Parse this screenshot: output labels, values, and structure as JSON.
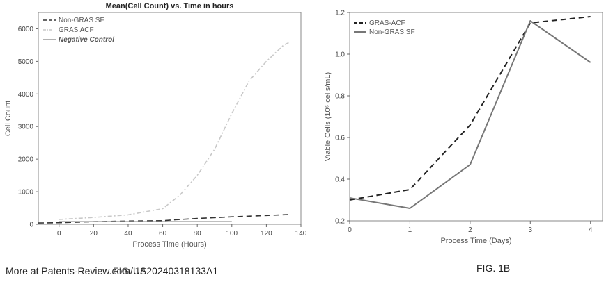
{
  "chart_data": [
    {
      "type": "line",
      "title": "Mean(Cell Count) vs. Time in hours",
      "xlabel": "Process Time (Hours)",
      "ylabel": "Cell Count",
      "xlim": [
        -12,
        140
      ],
      "ylim": [
        0,
        6500
      ],
      "xticks": [
        0,
        20,
        40,
        60,
        80,
        100,
        120,
        140
      ],
      "yticks": [
        0,
        1000,
        2000,
        3000,
        4000,
        5000,
        6000
      ],
      "grid": false,
      "legend_position": "top-left",
      "series": [
        {
          "name": "Non-GRAS SF",
          "color": "#333333",
          "dash": "dash",
          "x": [
            -12,
            0,
            20,
            40,
            60,
            70,
            80,
            100,
            120,
            134
          ],
          "y": [
            40,
            50,
            80,
            100,
            110,
            150,
            180,
            230,
            270,
            300
          ]
        },
        {
          "name": "GRAS ACF",
          "color": "#c8c8c8",
          "dash": "dashdot",
          "x": [
            0,
            20,
            40,
            60,
            70,
            80,
            90,
            100,
            110,
            120,
            130,
            134
          ],
          "y": [
            150,
            210,
            290,
            480,
            900,
            1500,
            2300,
            3400,
            4400,
            5000,
            5500,
            5600
          ]
        },
        {
          "name": "Negative Control",
          "color": "#999999",
          "dash": "solid",
          "x": [
            0,
            20,
            40,
            60,
            80,
            100
          ],
          "y": [
            80,
            80,
            80,
            80,
            80,
            80
          ]
        }
      ]
    },
    {
      "type": "line",
      "title": "",
      "xlabel": "Process Time (Days)",
      "ylabel": "Viable Cells (10⁶ cells/mL)",
      "xlim": [
        0,
        4.2
      ],
      "ylim": [
        0.2,
        1.2
      ],
      "xticks": [
        0,
        1,
        2,
        3,
        4
      ],
      "yticks": [
        0.2,
        0.4,
        0.6,
        0.8,
        1.0,
        1.2
      ],
      "ytick_labels": [
        "0.2",
        "0.4",
        "0.6",
        "0.8",
        "1.0",
        "1.2"
      ],
      "grid": false,
      "legend_position": "top-left",
      "series": [
        {
          "name": "GRAS-ACF",
          "color": "#222222",
          "dash": "dash",
          "x": [
            0,
            1,
            2,
            3,
            4
          ],
          "y": [
            0.3,
            0.35,
            0.66,
            1.15,
            1.18
          ]
        },
        {
          "name": "Non-GRAS SF",
          "color": "#777777",
          "dash": "solid",
          "x": [
            0,
            1,
            2,
            3,
            4
          ],
          "y": [
            0.31,
            0.26,
            0.47,
            1.16,
            0.96
          ]
        }
      ]
    }
  ],
  "captions": {
    "watermark": "More at Patents-Review.com/US20240318133A1",
    "fig1a": "FIG. 1A",
    "fig1b": "FIG. 1B"
  }
}
